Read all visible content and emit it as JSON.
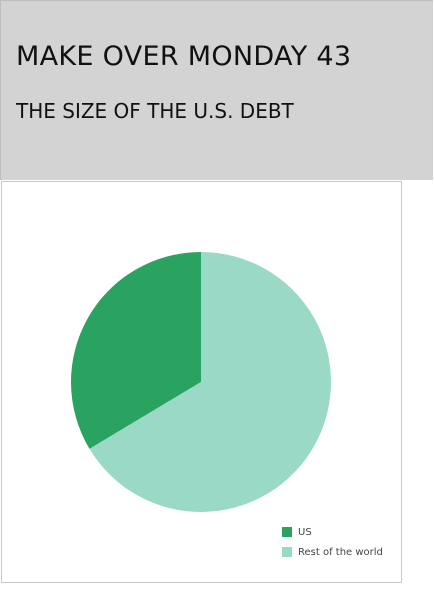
{
  "header": {
    "title": "MAKE OVER MONDAY 43",
    "subtitle": "THE SIZE OF THE U.S. DEBT"
  },
  "chart_data": {
    "type": "pie",
    "title": "",
    "slices": [
      {
        "label": "US",
        "value": 33.6,
        "color": "#2ba360"
      },
      {
        "label": "Rest of the world",
        "value": 66.4,
        "color": "#9ad9c6"
      }
    ],
    "start_angle_deg": 0,
    "direction": "counterclockwise",
    "legend_position": "bottom-right"
  }
}
